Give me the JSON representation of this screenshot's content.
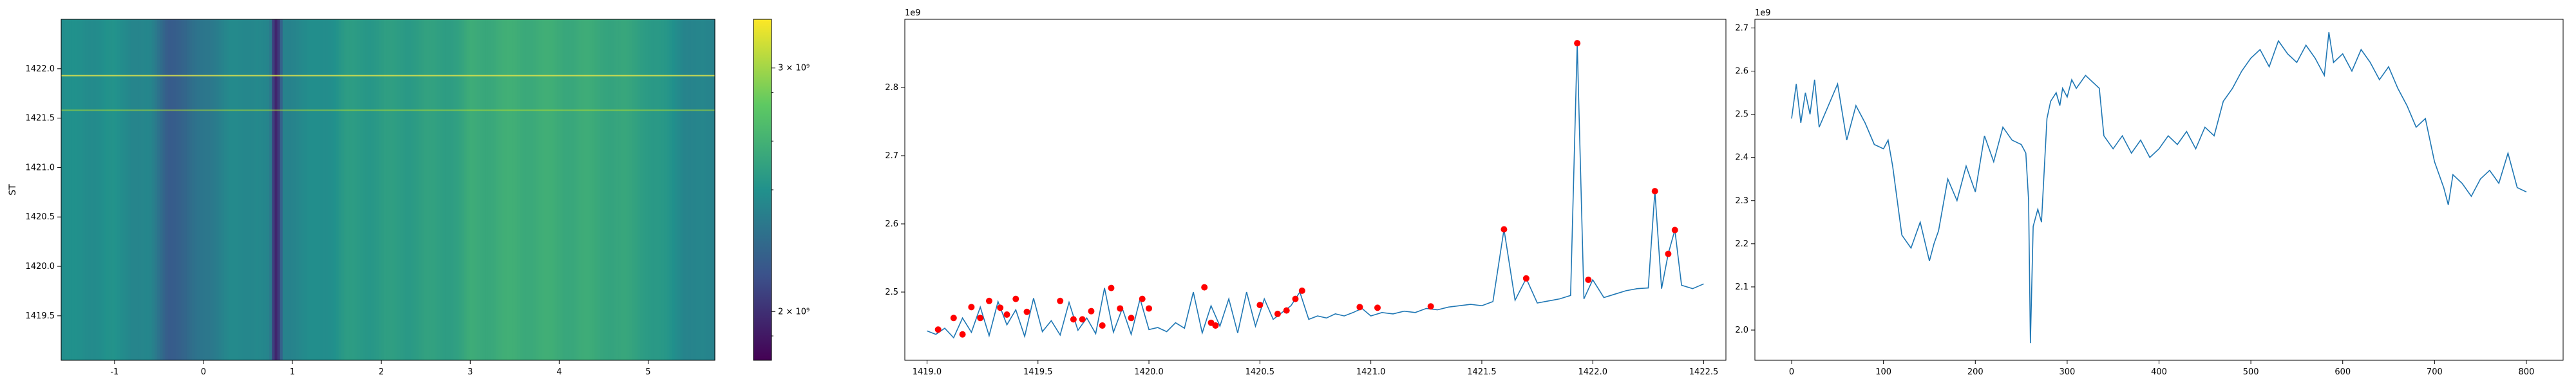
{
  "chart_data": [
    {
      "type": "heatmap",
      "ylabel": "ST",
      "xlim": [
        -1.6,
        5.75
      ],
      "ylim": [
        1419.05,
        1422.5
      ],
      "x_ticks": [
        "-1",
        "0",
        "1",
        "2",
        "3",
        "4",
        "5"
      ],
      "y_ticks": [
        "1419.5",
        "1420.0",
        "1420.5",
        "1421.0",
        "1421.5",
        "1422.0"
      ],
      "colormap": "viridis",
      "colorbar": {
        "ticks": [
          "2 × 10⁹",
          "3 × 10⁹"
        ],
        "range": [
          1800000000.0,
          3200000000.0
        ]
      },
      "column_profile": {
        "x": [
          -1.6,
          -1.0,
          -0.6,
          -0.4,
          -0.2,
          0.0,
          0.3,
          0.6,
          0.75,
          0.8,
          0.85,
          0.9,
          1.2,
          1.5,
          1.6,
          2.0,
          2.5,
          2.9,
          3.0,
          3.5,
          4.0,
          4.5,
          5.0,
          5.4,
          5.75
        ],
        "values": [
          2480000000.0,
          2490000000.0,
          2420000000.0,
          2220000000.0,
          2250000000.0,
          2360000000.0,
          2440000000.0,
          2470000000.0,
          2400000000.0,
          1900000000.0,
          2050000000.0,
          2430000000.0,
          2460000000.0,
          2520000000.0,
          2550000000.0,
          2560000000.0,
          2580000000.0,
          2600000000.0,
          2650000000.0,
          2670000000.0,
          2660000000.0,
          2640000000.0,
          2580000000.0,
          2450000000.0,
          2400000000.0
        ]
      },
      "highlight_rows": [
        1421.93,
        1421.58
      ]
    },
    {
      "type": "line",
      "offset_text": "1e9",
      "xlim": [
        1418.9,
        1422.6
      ],
      "ylim": [
        2.4,
        2.9
      ],
      "x_ticks": [
        "1419.0",
        "1419.5",
        "1420.0",
        "1420.5",
        "1421.0",
        "1421.5",
        "1422.0",
        "1422.5"
      ],
      "y_ticks": [
        "2.5",
        "2.6",
        "2.7",
        "2.8"
      ],
      "series": [
        {
          "x": [
            1419.0,
            1419.04,
            1419.08,
            1419.12,
            1419.16,
            1419.2,
            1419.24,
            1419.28,
            1419.32,
            1419.36,
            1419.4,
            1419.44,
            1419.48,
            1419.52,
            1419.56,
            1419.6,
            1419.64,
            1419.68,
            1419.72,
            1419.76,
            1419.8,
            1419.84,
            1419.88,
            1419.92,
            1419.96,
            1420.0,
            1420.04,
            1420.08,
            1420.12,
            1420.16,
            1420.2,
            1420.24,
            1420.28,
            1420.32,
            1420.36,
            1420.4,
            1420.44,
            1420.48,
            1420.52,
            1420.56,
            1420.6,
            1420.64,
            1420.68,
            1420.72,
            1420.76,
            1420.8,
            1420.84,
            1420.88,
            1420.92,
            1420.96,
            1421.0,
            1421.05,
            1421.1,
            1421.15,
            1421.2,
            1421.25,
            1421.3,
            1421.35,
            1421.4,
            1421.45,
            1421.5,
            1421.55,
            1421.6,
            1421.65,
            1421.7,
            1421.75,
            1421.8,
            1421.85,
            1421.9,
            1421.93,
            1421.96,
            1422.0,
            1422.05,
            1422.1,
            1422.15,
            1422.2,
            1422.25,
            1422.28,
            1422.31,
            1422.34,
            1422.37,
            1422.4,
            1422.45,
            1422.5
          ],
          "y": [
            2.443,
            2.438,
            2.447,
            2.433,
            2.462,
            2.441,
            2.478,
            2.436,
            2.486,
            2.452,
            2.474,
            2.435,
            2.491,
            2.442,
            2.458,
            2.437,
            2.485,
            2.444,
            2.462,
            2.439,
            2.506,
            2.441,
            2.476,
            2.438,
            2.49,
            2.445,
            2.448,
            2.442,
            2.455,
            2.447,
            2.5,
            2.44,
            2.48,
            2.45,
            2.49,
            2.44,
            2.5,
            2.45,
            2.49,
            2.46,
            2.47,
            2.48,
            2.5,
            2.46,
            2.465,
            2.462,
            2.468,
            2.465,
            2.47,
            2.476,
            2.465,
            2.47,
            2.468,
            2.472,
            2.47,
            2.476,
            2.474,
            2.478,
            2.48,
            2.482,
            2.48,
            2.486,
            2.592,
            2.488,
            2.52,
            2.484,
            2.487,
            2.49,
            2.495,
            2.865,
            2.49,
            2.518,
            2.492,
            2.497,
            2.502,
            2.505,
            2.506,
            2.648,
            2.505,
            2.556,
            2.591,
            2.51,
            2.505,
            2.512
          ]
        }
      ],
      "peaks": {
        "x": [
          1419.05,
          1419.12,
          1419.16,
          1419.2,
          1419.24,
          1419.28,
          1419.33,
          1419.36,
          1419.4,
          1419.45,
          1419.6,
          1419.66,
          1419.7,
          1419.74,
          1419.79,
          1419.83,
          1419.87,
          1419.92,
          1419.97,
          1420.0,
          1420.25,
          1420.28,
          1420.3,
          1420.5,
          1420.58,
          1420.62,
          1420.66,
          1420.69,
          1420.95,
          1421.03,
          1421.27,
          1421.6,
          1421.7,
          1421.93,
          1421.98,
          1422.28,
          1422.34,
          1422.37
        ],
        "y": [
          2.445,
          2.462,
          2.438,
          2.478,
          2.462,
          2.487,
          2.477,
          2.467,
          2.49,
          2.471,
          2.487,
          2.46,
          2.46,
          2.472,
          2.451,
          2.506,
          2.476,
          2.462,
          2.49,
          2.476,
          2.507,
          2.455,
          2.451,
          2.481,
          2.468,
          2.473,
          2.49,
          2.502,
          2.478,
          2.477,
          2.479,
          2.592,
          2.52,
          2.865,
          2.518,
          2.648,
          2.556,
          2.591
        ]
      }
    },
    {
      "type": "line",
      "offset_text": "1e9",
      "xlim": [
        -40,
        840
      ],
      "ylim": [
        1.93,
        2.72
      ],
      "x_ticks": [
        "0",
        "100",
        "200",
        "300",
        "400",
        "500",
        "600",
        "700",
        "800"
      ],
      "y_ticks": [
        "2.0",
        "2.1",
        "2.2",
        "2.3",
        "2.4",
        "2.5",
        "2.6",
        "2.7"
      ],
      "series": [
        {
          "x": [
            0,
            5,
            10,
            15,
            20,
            25,
            30,
            40,
            50,
            60,
            70,
            80,
            90,
            100,
            105,
            110,
            120,
            130,
            140,
            150,
            155,
            160,
            170,
            180,
            190,
            200,
            210,
            220,
            230,
            240,
            250,
            255,
            258,
            260,
            263,
            268,
            272,
            278,
            282,
            288,
            292,
            295,
            300,
            305,
            310,
            320,
            330,
            335,
            340,
            350,
            360,
            370,
            380,
            390,
            400,
            410,
            420,
            430,
            440,
            450,
            460,
            470,
            480,
            490,
            500,
            510,
            520,
            530,
            540,
            550,
            560,
            570,
            580,
            585,
            590,
            600,
            610,
            620,
            630,
            640,
            650,
            660,
            670,
            680,
            690,
            700,
            710,
            715,
            720,
            730,
            740,
            750,
            760,
            770,
            780,
            790,
            800
          ],
          "y": [
            2.49,
            2.57,
            2.48,
            2.55,
            2.5,
            2.58,
            2.47,
            2.52,
            2.57,
            2.44,
            2.52,
            2.48,
            2.43,
            2.42,
            2.44,
            2.38,
            2.22,
            2.19,
            2.25,
            2.16,
            2.2,
            2.23,
            2.35,
            2.3,
            2.38,
            2.32,
            2.45,
            2.39,
            2.47,
            2.44,
            2.43,
            2.41,
            2.3,
            1.97,
            2.24,
            2.28,
            2.25,
            2.49,
            2.53,
            2.55,
            2.52,
            2.56,
            2.54,
            2.58,
            2.56,
            2.59,
            2.57,
            2.56,
            2.45,
            2.42,
            2.45,
            2.41,
            2.44,
            2.4,
            2.42,
            2.45,
            2.43,
            2.46,
            2.42,
            2.47,
            2.45,
            2.53,
            2.56,
            2.6,
            2.63,
            2.65,
            2.61,
            2.67,
            2.64,
            2.62,
            2.66,
            2.63,
            2.59,
            2.69,
            2.62,
            2.64,
            2.6,
            2.65,
            2.62,
            2.58,
            2.61,
            2.56,
            2.52,
            2.47,
            2.49,
            2.39,
            2.33,
            2.29,
            2.36,
            2.34,
            2.31,
            2.35,
            2.37,
            2.34,
            2.41,
            2.33,
            2.32
          ]
        }
      ]
    }
  ]
}
